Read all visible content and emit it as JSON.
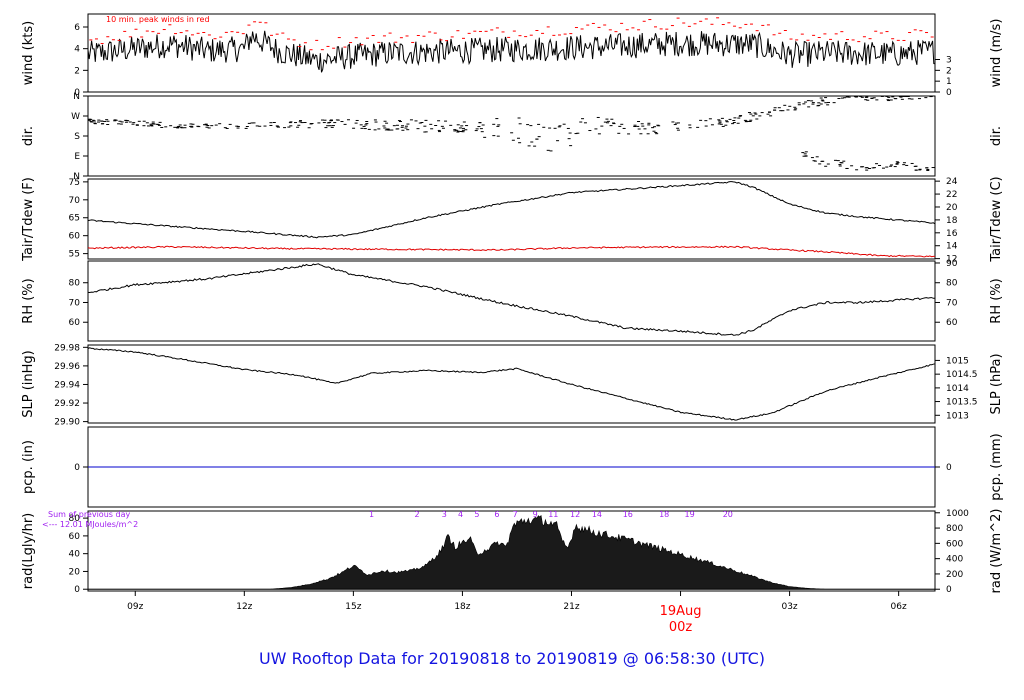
{
  "footer_title": "UW Rooftop Data for 20190818  to  20190819 @ 06:58:30  (UTC)",
  "colors": {
    "peak": "#ff0000",
    "dew": "#e00000",
    "precip": "#0000cc",
    "footer": "#1515e0",
    "rad_annot": "#a020f0",
    "date_label": "#ff0000"
  },
  "x_axis": {
    "range_hours": [
      7.7,
      31.0
    ],
    "ticks": [
      {
        "h": 9,
        "label": "09z"
      },
      {
        "h": 12,
        "label": "12z"
      },
      {
        "h": 15,
        "label": "15z"
      },
      {
        "h": 18,
        "label": "18z"
      },
      {
        "h": 21,
        "label": "21z"
      },
      {
        "h": 27,
        "label": "03z"
      },
      {
        "h": 30,
        "label": "06z"
      }
    ],
    "date_marker": {
      "h": 24,
      "label": "19Aug",
      "sublabel": "00z"
    }
  },
  "chart_data": [
    {
      "type": "line",
      "panel": "wind",
      "ylabel_left": "wind (kts)",
      "ylabel_right": "wind (m/s)",
      "annotation": "10 min. peak winds in red",
      "ylim": [
        0,
        7.2
      ],
      "left_ticks": [
        0,
        2,
        4,
        6
      ],
      "right_ticks": [
        {
          "v": 0,
          "label": "0"
        },
        {
          "v": 1,
          "label": "1"
        },
        {
          "v": 2,
          "label": "2"
        },
        {
          "v": 3,
          "label": "3"
        }
      ],
      "series": [
        {
          "role": "wind",
          "hours": [
            7.7,
            9.0,
            10.0,
            11.0,
            12.0,
            12.2,
            13.0,
            14.0,
            15.0,
            16.0,
            18.0,
            20.0,
            22.0,
            24.0,
            26.0,
            27.0,
            28.0,
            30.0,
            31.0
          ],
          "values": [
            3.5,
            4.0,
            4.4,
            3.8,
            4.0,
            5.2,
            3.7,
            2.9,
            3.3,
            3.6,
            3.8,
            4.0,
            4.2,
            4.5,
            4.4,
            3.4,
            3.6,
            3.5,
            3.8
          ]
        },
        {
          "role": "peak",
          "hours": [
            7.7,
            9.0,
            10.0,
            11.0,
            12.0,
            12.2,
            13.0,
            14.0,
            15.0,
            16.0,
            18.0,
            20.0,
            22.0,
            24.0,
            26.0,
            27.0,
            28.0,
            30.0,
            31.0
          ],
          "values": [
            4.8,
            5.4,
            6.0,
            5.2,
            5.6,
            6.9,
            5.0,
            4.3,
            4.8,
            5.0,
            5.3,
            5.7,
            6.0,
            6.4,
            6.3,
            5.0,
            5.2,
            5.1,
            5.4
          ]
        }
      ]
    },
    {
      "type": "scatter",
      "panel": "dir",
      "ylabel_left": "dir.",
      "ylabel_right": "dir.",
      "ylim": [
        0,
        360
      ],
      "left_ticks": [
        {
          "v": 0,
          "label": "N"
        },
        {
          "v": 90,
          "label": "E"
        },
        {
          "v": 180,
          "label": "S"
        },
        {
          "v": 270,
          "label": "W"
        },
        {
          "v": 360,
          "label": "N"
        }
      ],
      "series": [
        {
          "role": "direction",
          "hours": [
            7.7,
            9.0,
            10.0,
            12.0,
            14.0,
            16.0,
            18.0,
            19.5,
            20.5,
            21.5,
            23.0,
            25.0,
            26.5,
            27.5,
            29.0,
            31.0
          ],
          "values": [
            245,
            240,
            225,
            225,
            235,
            230,
            220,
            205,
            155,
            230,
            215,
            235,
            285,
            330,
            350,
            355
          ],
          "spread": [
            12,
            12,
            12,
            12,
            18,
            25,
            30,
            60,
            70,
            40,
            30,
            25,
            20,
            20,
            15,
            10
          ]
        },
        {
          "role": "north-east-branch",
          "hours": [
            27.3,
            28.0,
            29.0,
            30.0,
            31.0
          ],
          "values": [
            100,
            60,
            40,
            50,
            30
          ],
          "spread": [
            20,
            20,
            15,
            15,
            15
          ]
        }
      ]
    },
    {
      "type": "line",
      "panel": "temp",
      "ylabel_left": "Tair/Tdew (F)",
      "ylabel_right": "Tair/Tdew (C)",
      "ylim": [
        53.5,
        75.8
      ],
      "left_ticks": [
        55,
        60,
        65,
        70,
        75
      ],
      "right_ticks": [
        {
          "v": 53.6,
          "label": "12"
        },
        {
          "v": 57.2,
          "label": "14"
        },
        {
          "v": 60.8,
          "label": "16"
        },
        {
          "v": 64.4,
          "label": "18"
        },
        {
          "v": 68.0,
          "label": "20"
        },
        {
          "v": 71.6,
          "label": "22"
        },
        {
          "v": 75.2,
          "label": "24"
        }
      ],
      "series": [
        {
          "role": "tair",
          "hours": [
            7.7,
            10.0,
            12.0,
            14.0,
            15.0,
            17.0,
            19.0,
            21.0,
            23.0,
            24.5,
            25.5,
            26.0,
            27.0,
            28.0,
            29.0,
            31.0
          ],
          "values": [
            64.3,
            62.6,
            61.2,
            59.6,
            60.3,
            65.0,
            68.8,
            72.0,
            73.3,
            74.3,
            75.0,
            73.5,
            68.8,
            66.3,
            65.2,
            63.5
          ]
        },
        {
          "role": "tdew",
          "hours": [
            7.7,
            10.0,
            13.0,
            16.0,
            19.0,
            21.0,
            23.0,
            25.5,
            27.0,
            28.0,
            29.5,
            31.0
          ],
          "values": [
            56.5,
            56.9,
            56.4,
            56.2,
            56.0,
            56.6,
            56.8,
            56.9,
            56.0,
            55.5,
            54.4,
            54.2
          ]
        }
      ]
    },
    {
      "type": "line",
      "panel": "rh",
      "ylabel_left": "RH (%)",
      "ylabel_right": "RH (%)",
      "ylim": [
        50.5,
        91
      ],
      "left_ticks": [
        60,
        70,
        80
      ],
      "right_ticks": [
        {
          "v": 60,
          "label": "60"
        },
        {
          "v": 70,
          "label": "70"
        },
        {
          "v": 80,
          "label": "80"
        },
        {
          "v": 90,
          "label": "90"
        }
      ],
      "series": [
        {
          "role": "rh",
          "hours": [
            7.7,
            9.0,
            11.0,
            13.0,
            14.0,
            15.0,
            17.0,
            19.0,
            21.0,
            22.5,
            24.0,
            25.5,
            26.0,
            27.0,
            28.0,
            29.0,
            31.0
          ],
          "values": [
            75.0,
            79.0,
            82.0,
            87.0,
            89.5,
            84.0,
            78.0,
            70.0,
            63.0,
            57.0,
            55.5,
            53.5,
            56.0,
            66.0,
            70.0,
            70.0,
            72.5
          ]
        }
      ]
    },
    {
      "type": "line",
      "panel": "slp",
      "ylabel_left": "SLP (inHg)",
      "ylabel_right": "SLP (hPa)",
      "ylim": [
        29.8985,
        29.9825
      ],
      "left_ticks": [
        {
          "v": 29.9,
          "label": "29.90"
        },
        {
          "v": 29.92,
          "label": "29.92"
        },
        {
          "v": 29.94,
          "label": "29.94"
        },
        {
          "v": 29.96,
          "label": "29.96"
        },
        {
          "v": 29.98,
          "label": "29.98"
        }
      ],
      "right_ticks": [
        {
          "v": 29.9068,
          "label": "1013"
        },
        {
          "v": 29.9216,
          "label": "1013.5"
        },
        {
          "v": 29.9363,
          "label": "1014"
        },
        {
          "v": 29.9511,
          "label": "1014.5"
        },
        {
          "v": 29.9659,
          "label": "1015"
        }
      ],
      "series": [
        {
          "role": "slp",
          "hours": [
            7.7,
            9.0,
            10.0,
            12.0,
            13.5,
            14.5,
            15.5,
            17.0,
            18.5,
            19.5,
            21.0,
            22.5,
            24.0,
            25.5,
            26.5,
            28.0,
            29.5,
            31.0
          ],
          "values": [
            29.979,
            29.975,
            29.969,
            29.956,
            29.95,
            29.941,
            29.952,
            29.955,
            29.953,
            29.957,
            29.94,
            29.925,
            29.91,
            29.902,
            29.909,
            29.933,
            29.948,
            29.962
          ]
        }
      ]
    },
    {
      "type": "line",
      "panel": "pcp",
      "ylabel_left": "pcp. (in)",
      "ylabel_right": "pcp. (mm)",
      "ylim": [
        -0.2,
        0.2
      ],
      "left_ticks": [
        {
          "v": 0,
          "label": "0"
        }
      ],
      "right_ticks": [
        {
          "v": 0,
          "label": "0"
        }
      ],
      "series": [
        {
          "role": "precip",
          "hours": [
            7.7,
            31.0
          ],
          "values": [
            0,
            0
          ]
        }
      ]
    },
    {
      "type": "area",
      "panel": "rad",
      "ylabel_left": "rad(Lgly/hr)",
      "ylabel_right": "rad (W/m^2)",
      "annotation_lines": [
        "Sum of previous day",
        "<--- 12.01 MJoules/m^2"
      ],
      "ylim": [
        -2,
        88
      ],
      "left_ticks": [
        0,
        20,
        40,
        60,
        80
      ],
      "right_ticks": [
        {
          "v": 0,
          "label": "0"
        },
        {
          "v": 17.2,
          "label": "200"
        },
        {
          "v": 34.4,
          "label": "400"
        },
        {
          "v": 51.6,
          "label": "600"
        },
        {
          "v": 68.8,
          "label": "800"
        },
        {
          "v": 86.0,
          "label": "1000"
        }
      ],
      "top_labels": [
        {
          "h": 15.5,
          "label": "1"
        },
        {
          "h": 16.75,
          "label": "2"
        },
        {
          "h": 17.5,
          "label": "3"
        },
        {
          "h": 17.95,
          "label": "4"
        },
        {
          "h": 18.4,
          "label": "5"
        },
        {
          "h": 18.95,
          "label": "6"
        },
        {
          "h": 19.45,
          "label": "7"
        },
        {
          "h": 20.0,
          "label": "9"
        },
        {
          "h": 20.5,
          "label": "11"
        },
        {
          "h": 21.1,
          "label": "12"
        },
        {
          "h": 21.7,
          "label": "14"
        },
        {
          "h": 22.55,
          "label": "16"
        },
        {
          "h": 23.55,
          "label": "18"
        },
        {
          "h": 24.25,
          "label": "19"
        },
        {
          "h": 25.3,
          "label": "20"
        }
      ],
      "series": [
        {
          "role": "radiation",
          "hours": [
            7.7,
            12.7,
            13.3,
            13.8,
            14.3,
            14.7,
            15.0,
            15.4,
            15.8,
            16.2,
            16.6,
            17.0,
            17.4,
            17.6,
            17.8,
            18.0,
            18.2,
            18.4,
            18.7,
            19.0,
            19.2,
            19.4,
            19.6,
            19.8,
            20.2,
            20.6,
            20.7,
            20.9,
            21.1,
            21.6,
            22.6,
            23.6,
            24.6,
            25.5,
            26.0,
            26.5,
            27.0,
            27.5,
            28.0,
            31.0
          ],
          "values": [
            0,
            0,
            2,
            6,
            12,
            20,
            28,
            17,
            22,
            20,
            22,
            28,
            45,
            62,
            50,
            55,
            60,
            42,
            48,
            55,
            50,
            75,
            80,
            82,
            82,
            75,
            60,
            48,
            75,
            68,
            58,
            46,
            34,
            22,
            15,
            8,
            3,
            1,
            0,
            0
          ]
        }
      ]
    }
  ]
}
